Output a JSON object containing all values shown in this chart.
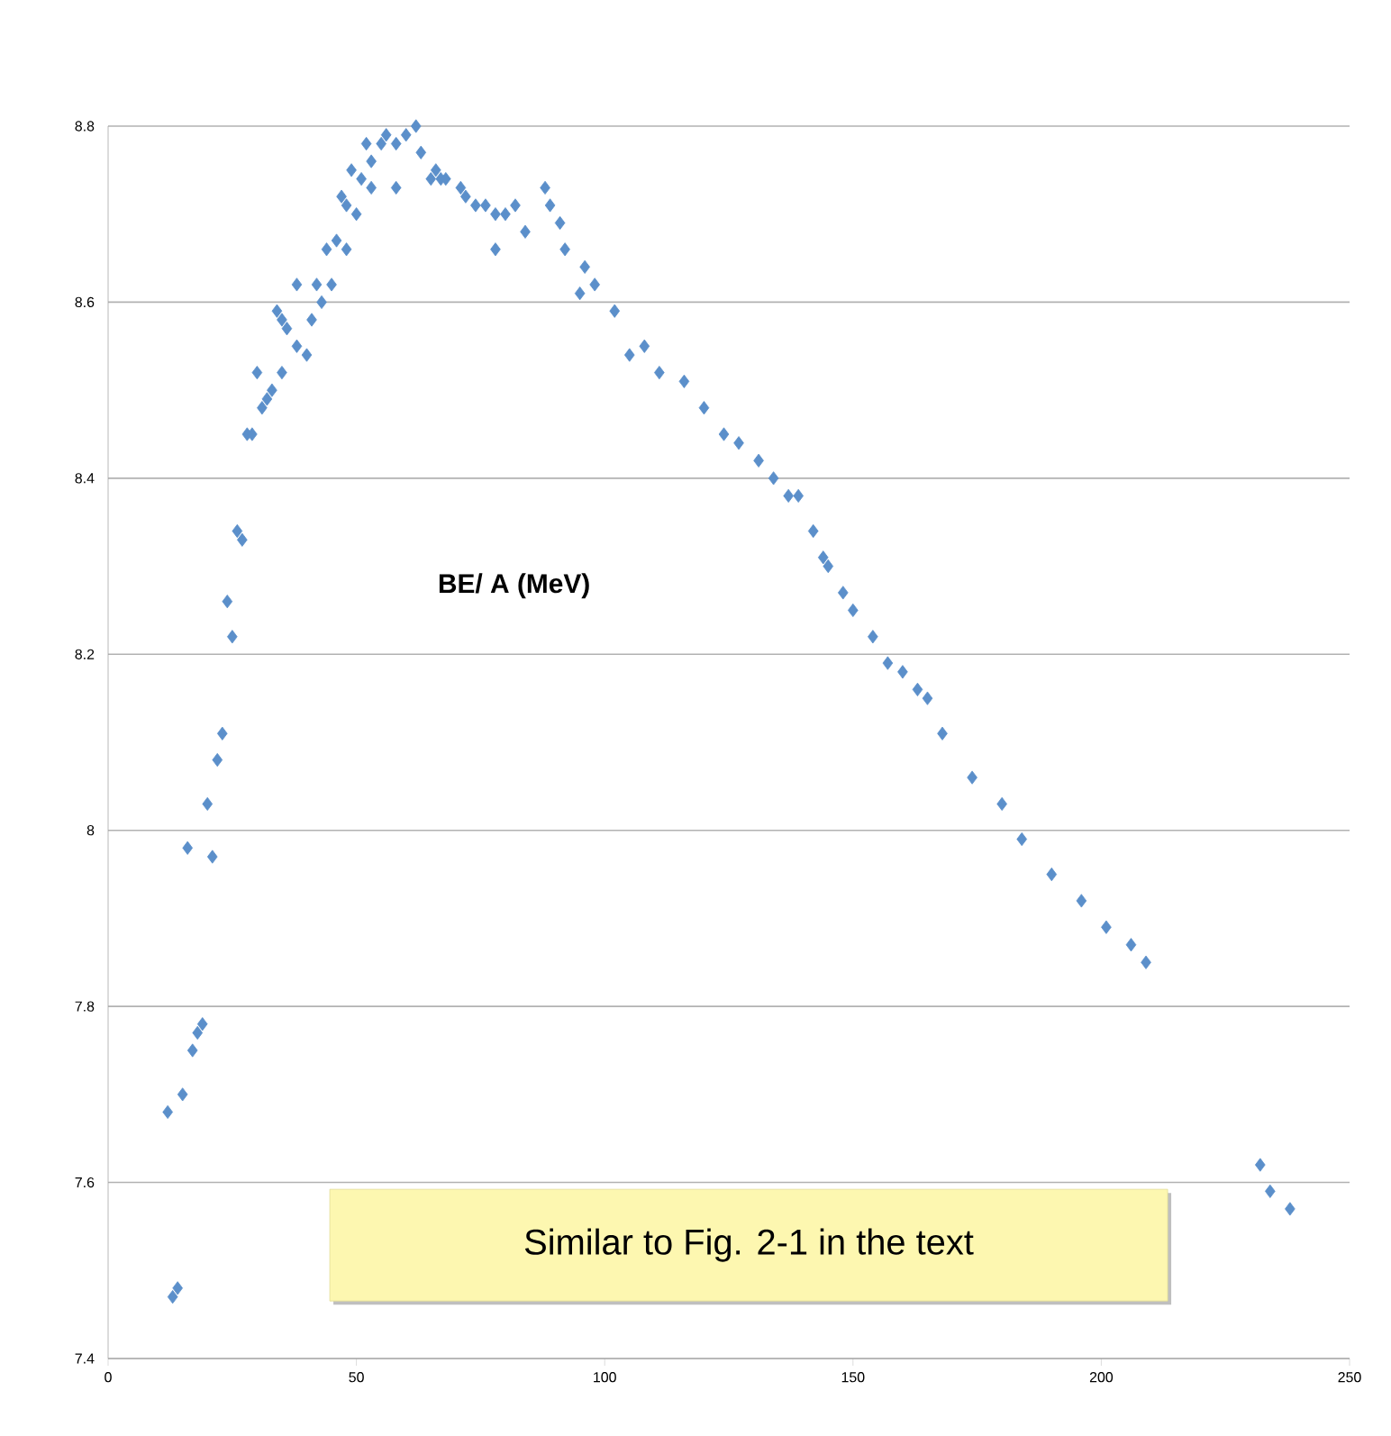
{
  "chart_data": {
    "type": "scatter",
    "color": "#5b8fca",
    "marker": "diamond",
    "grid": "y",
    "x": [
      12,
      13,
      14,
      15,
      16,
      17,
      18,
      19,
      20,
      21,
      22,
      23,
      24,
      25,
      26,
      27,
      28,
      29,
      30,
      31,
      32,
      33,
      34,
      35,
      35,
      36,
      38,
      38,
      40,
      41,
      42,
      43,
      44,
      45,
      46,
      47,
      48,
      48,
      49,
      50,
      51,
      52,
      53,
      53,
      55,
      56,
      58,
      58,
      60,
      62,
      63,
      65,
      66,
      67,
      68,
      71,
      72,
      74,
      76,
      78,
      78,
      80,
      82,
      84,
      88,
      89,
      91,
      92,
      95,
      96,
      98,
      102,
      105,
      108,
      111,
      116,
      120,
      124,
      127,
      131,
      134,
      137,
      139,
      142,
      144,
      145,
      148,
      150,
      154,
      157,
      160,
      163,
      165,
      168,
      174,
      180,
      184,
      190,
      196,
      201,
      206,
      209,
      232,
      234,
      238
    ],
    "values": [
      7.68,
      7.47,
      7.48,
      7.7,
      7.98,
      7.75,
      7.77,
      7.78,
      8.03,
      7.97,
      8.08,
      8.11,
      8.26,
      8.22,
      8.34,
      8.33,
      8.45,
      8.45,
      8.52,
      8.48,
      8.49,
      8.5,
      8.59,
      8.58,
      8.52,
      8.57,
      8.62,
      8.55,
      8.54,
      8.58,
      8.62,
      8.6,
      8.66,
      8.62,
      8.67,
      8.72,
      8.66,
      8.71,
      8.75,
      8.7,
      8.74,
      8.78,
      8.73,
      8.76,
      8.78,
      8.79,
      8.78,
      8.73,
      8.79,
      8.8,
      8.77,
      8.74,
      8.75,
      8.74,
      8.74,
      8.73,
      8.72,
      8.71,
      8.71,
      8.66,
      8.7,
      8.7,
      8.71,
      8.68,
      8.73,
      8.71,
      8.69,
      8.66,
      8.61,
      8.64,
      8.62,
      8.59,
      8.54,
      8.55,
      8.52,
      8.51,
      8.48,
      8.45,
      8.44,
      8.42,
      8.4,
      8.38,
      8.38,
      8.34,
      8.31,
      8.3,
      8.27,
      8.25,
      8.22,
      8.19,
      8.18,
      8.16,
      8.15,
      8.11,
      8.06,
      8.03,
      7.99,
      7.95,
      7.92,
      7.89,
      7.87,
      7.85,
      7.62,
      7.59,
      7.57
    ],
    "xlim": [
      0,
      250
    ],
    "xticks": [
      0,
      50,
      100,
      150,
      200,
      250
    ],
    "ylim": [
      7.4,
      8.8
    ],
    "yticks": [
      7.4,
      7.6,
      7.8,
      8,
      8.2,
      8.4,
      8.6,
      8.8
    ],
    "annotations": [
      "BE/ A (MeV)",
      "Similar to Fig. 2-1 in the text"
    ]
  }
}
